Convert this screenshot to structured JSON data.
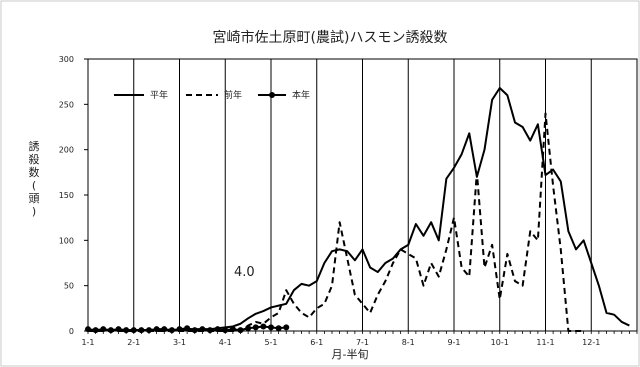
{
  "chart_data": {
    "type": "line",
    "title": "宮崎市佐土原町(農試)ハスモン誘殺数",
    "xlabel": "月-半旬",
    "ylabel": "誘殺数(頭)",
    "ylim": [
      0,
      300
    ],
    "y_ticks": [
      "0",
      "50",
      "100",
      "150",
      "200",
      "250",
      "300"
    ],
    "x_ticks": [
      "1-1",
      "2-1",
      "3-1",
      "4-1",
      "5-1",
      "6-1",
      "7-1",
      "8-1",
      "9-1",
      "10-1",
      "11-1",
      "12-1"
    ],
    "grid": "vertical lines at month starts",
    "legend_position": "top-left",
    "annotation": "4.0",
    "series": [
      {
        "name": "平年",
        "style": "solid",
        "x": [
          0,
          1,
          2,
          3,
          4,
          5,
          6,
          7,
          8,
          9,
          10,
          11,
          12,
          13,
          14,
          15,
          16,
          17,
          18,
          19,
          20,
          21,
          22,
          23,
          24,
          25,
          26,
          27,
          28,
          29,
          30,
          31,
          32,
          33,
          34,
          35,
          36,
          37,
          38,
          39,
          40,
          41,
          42,
          43,
          44,
          45,
          46,
          47,
          48,
          49,
          50,
          51,
          52,
          53,
          54,
          55,
          56,
          57,
          58,
          59,
          60,
          61,
          62,
          63,
          64,
          65,
          66,
          67,
          68,
          69,
          70,
          71
        ],
        "values": [
          1,
          1,
          1,
          1,
          1,
          1,
          1,
          1,
          1,
          1,
          1,
          1,
          1,
          2,
          2,
          2,
          2,
          3,
          4,
          5,
          8,
          14,
          19,
          22,
          26,
          28,
          30,
          45,
          52,
          50,
          55,
          75,
          88,
          90,
          88,
          78,
          90,
          70,
          65,
          75,
          80,
          90,
          95,
          118,
          105,
          120,
          100,
          168,
          180,
          195,
          218,
          170,
          200,
          255,
          268,
          260,
          230,
          225,
          210,
          228,
          172,
          178,
          165,
          110,
          90,
          100,
          75,
          50,
          20,
          18,
          10,
          6
        ],
        "x_end": 72
      },
      {
        "name": "前年",
        "style": "dashed",
        "x": [
          0,
          1,
          2,
          3,
          4,
          5,
          6,
          7,
          8,
          9,
          10,
          11,
          12,
          13,
          14,
          15,
          16,
          17,
          18,
          19,
          20,
          21,
          22,
          23,
          24,
          25,
          26,
          27,
          28,
          29,
          30,
          31,
          32,
          33,
          34,
          35,
          36,
          37,
          38,
          39,
          40,
          41,
          42,
          43,
          44,
          45,
          46,
          47,
          48,
          49,
          50,
          51,
          52,
          53,
          54,
          55,
          56,
          57,
          58,
          59,
          60,
          61,
          62,
          63,
          64,
          65
        ],
        "values": [
          0,
          0,
          0,
          0,
          0,
          0,
          0,
          0,
          0,
          0,
          0,
          0,
          0,
          0,
          0,
          0,
          0,
          0,
          0,
          0,
          0,
          6,
          10,
          8,
          15,
          20,
          45,
          30,
          20,
          15,
          25,
          30,
          50,
          120,
          80,
          40,
          30,
          20,
          40,
          55,
          75,
          90,
          85,
          80,
          50,
          75,
          60,
          90,
          125,
          70,
          60,
          175,
          70,
          95,
          35,
          85,
          55,
          50,
          110,
          100,
          240,
          160,
          90,
          0,
          0,
          0
        ]
      },
      {
        "name": "本年",
        "style": "solid-marker",
        "x": [
          0,
          1,
          2,
          3,
          4,
          5,
          6,
          7,
          8,
          9,
          10,
          11,
          12,
          13,
          14,
          15,
          16,
          17,
          18,
          19,
          20,
          21,
          22,
          23,
          24,
          25,
          26
        ],
        "values": [
          2,
          1,
          2,
          1,
          2,
          1,
          1,
          1,
          1,
          2,
          2,
          1,
          2,
          3,
          1,
          2,
          1,
          2,
          1,
          2,
          1,
          3,
          4,
          5,
          4,
          3,
          4
        ]
      }
    ]
  }
}
